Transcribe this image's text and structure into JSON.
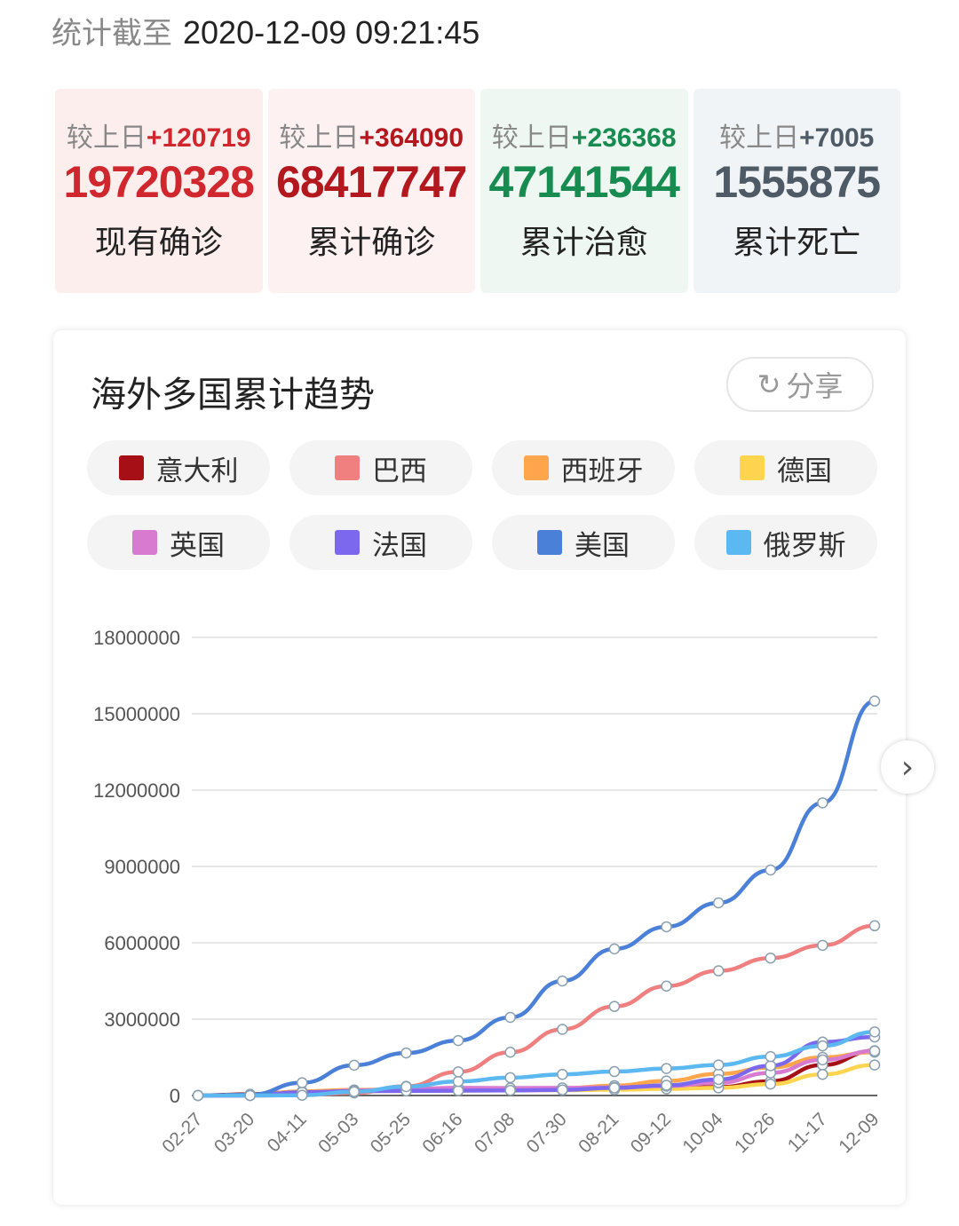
{
  "header": {
    "label": "统计截至",
    "timestamp": "2020-12-09 09:21:45"
  },
  "stats": [
    {
      "delta_label": "较上日",
      "delta": "+120719",
      "value": "19720328",
      "label": "现有确诊",
      "color": "#d0262d",
      "bg": "#fdeeee"
    },
    {
      "delta_label": "较上日",
      "delta": "+364090",
      "value": "68417747",
      "label": "累计确诊",
      "color": "#b3181f",
      "bg": "#fdf1f1"
    },
    {
      "delta_label": "较上日",
      "delta": "+236368",
      "value": "47141544",
      "label": "累计治愈",
      "color": "#178b50",
      "bg": "#eef7f1"
    },
    {
      "delta_label": "较上日",
      "delta": "+7005",
      "value": "1555875",
      "label": "累计死亡",
      "color": "#4e5a65",
      "bg": "#f0f4f6"
    }
  ],
  "card": {
    "title": "海外多国累计趋势",
    "share_label": "分享",
    "share_icon": "share-icon",
    "next_icon": "chevron-right-icon"
  },
  "chart_data": {
    "type": "line",
    "x": [
      "02-27",
      "03-20",
      "04-11",
      "05-03",
      "05-25",
      "06-16",
      "07-08",
      "07-30",
      "08-21",
      "09-12",
      "10-04",
      "10-26",
      "11-17",
      "12-09"
    ],
    "ylim": [
      0,
      18000000
    ],
    "yticks": [
      "0",
      "3000000",
      "6000000",
      "9000000",
      "12000000",
      "15000000",
      "18000000"
    ],
    "grid": true,
    "legend_placement": "top",
    "series": [
      {
        "name": "意大利",
        "color": "#a50f15",
        "values": [
          0,
          50000,
          150000,
          210000,
          230000,
          240000,
          240000,
          250000,
          260000,
          290000,
          330000,
          560000,
          1200000,
          1760000
        ]
      },
      {
        "name": "巴西",
        "color": "#f08080",
        "values": [
          0,
          0,
          20000,
          100000,
          360000,
          930000,
          1700000,
          2600000,
          3500000,
          4300000,
          4900000,
          5400000,
          5900000,
          6670000
        ]
      },
      {
        "name": "西班牙",
        "color": "#ffa64d",
        "values": [
          0,
          20000,
          160000,
          220000,
          240000,
          240000,
          250000,
          280000,
          390000,
          570000,
          850000,
          1100000,
          1500000,
          1700000
        ]
      },
      {
        "name": "德国",
        "color": "#ffd54f",
        "values": [
          0,
          20000,
          120000,
          170000,
          180000,
          190000,
          200000,
          210000,
          230000,
          260000,
          300000,
          450000,
          830000,
          1200000
        ]
      },
      {
        "name": "英国",
        "color": "#d77ad0",
        "values": [
          0,
          0,
          80000,
          190000,
          260000,
          300000,
          290000,
          300000,
          320000,
          370000,
          500000,
          890000,
          1400000,
          1750000
        ]
      },
      {
        "name": "法国",
        "color": "#7b68ee",
        "values": [
          0,
          10000,
          130000,
          170000,
          180000,
          190000,
          200000,
          220000,
          300000,
          400000,
          630000,
          1170000,
          2100000,
          2300000
        ]
      },
      {
        "name": "美国",
        "color": "#4a80d8",
        "values": [
          0,
          30000,
          500000,
          1190000,
          1670000,
          2160000,
          3070000,
          4500000,
          5760000,
          6630000,
          7570000,
          8860000,
          11500000,
          15500000
        ]
      },
      {
        "name": "俄罗斯",
        "color": "#5cb8f0",
        "values": [
          0,
          0,
          10000,
          150000,
          350000,
          550000,
          700000,
          830000,
          940000,
          1060000,
          1200000,
          1530000,
          1950000,
          2500000
        ]
      }
    ]
  }
}
